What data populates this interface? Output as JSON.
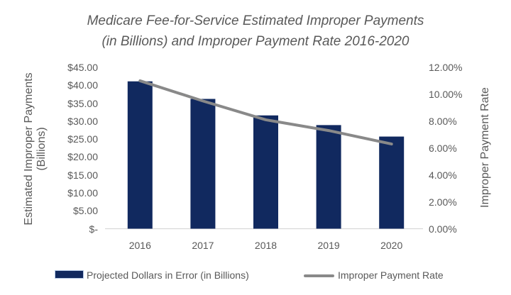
{
  "title": {
    "line1": "Medicare Fee-for-Service Estimated Improper Payments",
    "line2": "(in Billions) and Improper Payment Rate 2016-2020"
  },
  "left_axis": {
    "label_line1": "Estimated Improper Payments",
    "label_line2": "(Billions)",
    "tick_labels": [
      "$45.00",
      "$40.00",
      "$35.00",
      "$30.00",
      "$25.00",
      "$20.00",
      "$15.00",
      "$10.00",
      "$5.00",
      "$-"
    ]
  },
  "right_axis": {
    "label": "Improper Payment Rate",
    "tick_labels": [
      "12.00%",
      "10.00%",
      "8.00%",
      "6.00%",
      "4.00%",
      "2.00%",
      "0.00%"
    ]
  },
  "colors": {
    "bar": "#11295f",
    "line": "#898989",
    "text": "#595959",
    "axis_line": "#d9d9d9",
    "legend_swatch_highlight": "#b7cbe8"
  },
  "chart_data": {
    "type": "combo-bar-line",
    "title": "Medicare Fee-for-Service Estimated Improper Payments (in Billions) and Improper Payment Rate 2016-2020",
    "categories": [
      "2016",
      "2017",
      "2018",
      "2019",
      "2020"
    ],
    "series": [
      {
        "name": "Projected Dollars in Error (in Billions)",
        "type": "bar",
        "axis": "left",
        "values": [
          41.1,
          36.2,
          31.6,
          28.9,
          25.7
        ]
      },
      {
        "name": "Improper Payment Rate",
        "type": "line",
        "axis": "right",
        "values": [
          11.0,
          9.5,
          8.1,
          7.3,
          6.3
        ]
      }
    ],
    "left_ylabel": "Estimated Improper Payments (Billions)",
    "right_ylabel": "Improper Payment Rate",
    "left_ylim": [
      0,
      45
    ],
    "left_tick_step": 5,
    "right_ylim": [
      0,
      12
    ],
    "right_tick_step": 2,
    "grid": false,
    "legend_position": "bottom"
  }
}
